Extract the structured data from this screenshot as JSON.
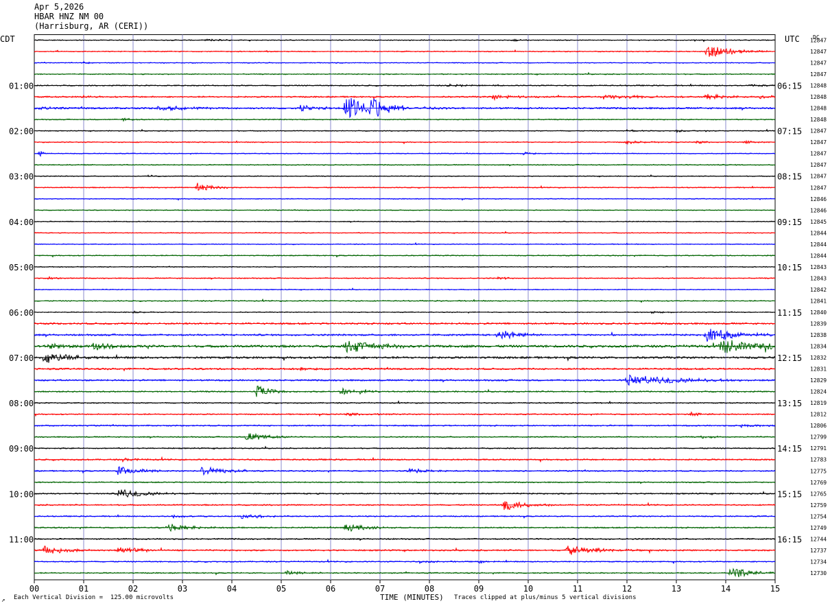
{
  "header": {
    "date": "Apr 5,2026",
    "station": "HBAR HNZ NM 00",
    "location": "(Harrisburg, AR (CERI))"
  },
  "chart_data": {
    "type": "line",
    "title": "HBAR HNZ NM 00",
    "left_axis_label": "CDT",
    "right_axis_label": "UTC",
    "dc_label": "DC",
    "xlabel": "TIME (MINUTES)",
    "x_ticks": [
      "00",
      "01",
      "02",
      "03",
      "04",
      "05",
      "06",
      "07",
      "08",
      "09",
      "10",
      "11",
      "12",
      "13",
      "14",
      "15"
    ],
    "xlim": [
      0,
      15
    ],
    "grid": true,
    "trace_colors": [
      "#000000",
      "#ff0000",
      "#0000ff",
      "#006400"
    ],
    "trace_minutes": 15,
    "left_times": [
      {
        "row": 4,
        "label": "01:00"
      },
      {
        "row": 8,
        "label": "02:00"
      },
      {
        "row": 12,
        "label": "03:00"
      },
      {
        "row": 16,
        "label": "04:00"
      },
      {
        "row": 20,
        "label": "05:00"
      },
      {
        "row": 24,
        "label": "06:00"
      },
      {
        "row": 28,
        "label": "07:00"
      },
      {
        "row": 32,
        "label": "08:00"
      },
      {
        "row": 36,
        "label": "09:00"
      },
      {
        "row": 40,
        "label": "10:00"
      },
      {
        "row": 44,
        "label": "11:00"
      }
    ],
    "right_times": [
      {
        "row": 4,
        "label": "06:15"
      },
      {
        "row": 8,
        "label": "07:15"
      },
      {
        "row": 12,
        "label": "08:15"
      },
      {
        "row": 16,
        "label": "09:15"
      },
      {
        "row": 20,
        "label": "10:15"
      },
      {
        "row": 24,
        "label": "11:15"
      },
      {
        "row": 28,
        "label": "12:15"
      },
      {
        "row": 32,
        "label": "13:15"
      },
      {
        "row": 36,
        "label": "14:15"
      },
      {
        "row": 40,
        "label": "15:15"
      },
      {
        "row": 44,
        "label": "16:15"
      }
    ],
    "dc_values": [
      "12847",
      "12847",
      "12847",
      "12847",
      "12848",
      "12848",
      "12848",
      "12848",
      "12847",
      "12847",
      "12847",
      "12847",
      "12847",
      "12847",
      "12846",
      "12846",
      "12845",
      "12844",
      "12844",
      "12844",
      "12843",
      "12843",
      "12842",
      "12841",
      "12840",
      "12839",
      "12838",
      "12834",
      "12832",
      "12831",
      "12829",
      "12824",
      "12819",
      "12812",
      "12806",
      "12799",
      "12791",
      "12783",
      "12775",
      "12769",
      "12765",
      "12759",
      "12754",
      "12749",
      "12744",
      "12737",
      "12734",
      "12730"
    ],
    "traces": [
      {
        "noise": 0.6,
        "events": [
          {
            "t": 3.5,
            "a": 2,
            "w": 0.3
          },
          {
            "t": 9.7,
            "a": 1.5,
            "w": 0.2
          }
        ]
      },
      {
        "noise": 0.7,
        "events": [
          {
            "t": 13.6,
            "a": 10,
            "w": 0.5
          }
        ]
      },
      {
        "noise": 0.6,
        "events": [
          {
            "t": 1.0,
            "a": 1.5,
            "w": 0.2
          }
        ]
      },
      {
        "noise": 0.7,
        "events": []
      },
      {
        "noise": 0.8,
        "events": [
          {
            "t": 8.4,
            "a": 2,
            "w": 0.3
          },
          {
            "t": 14.5,
            "a": 2,
            "w": 0.3
          }
        ]
      },
      {
        "noise": 1.0,
        "events": [
          {
            "t": 1.0,
            "a": 2,
            "w": 0.2
          },
          {
            "t": 9.3,
            "a": 4,
            "w": 0.4
          },
          {
            "t": 11.5,
            "a": 3,
            "w": 0.8
          },
          {
            "t": 13.6,
            "a": 4,
            "w": 0.4
          },
          {
            "t": 14.7,
            "a": 3,
            "w": 0.3
          }
        ]
      },
      {
        "noise": 1.2,
        "events": [
          {
            "t": 0.1,
            "a": 3,
            "w": 0.2
          },
          {
            "t": 2.5,
            "a": 4,
            "w": 0.6
          },
          {
            "t": 5.4,
            "a": 6,
            "w": 0.3
          },
          {
            "t": 6.3,
            "a": 20,
            "w": 0.4
          },
          {
            "t": 6.8,
            "a": 18,
            "w": 0.3
          },
          {
            "t": 7.2,
            "a": 8,
            "w": 0.2
          },
          {
            "t": 7.9,
            "a": 3,
            "w": 0.3
          }
        ]
      },
      {
        "noise": 0.7,
        "events": [
          {
            "t": 1.8,
            "a": 2,
            "w": 0.2
          }
        ]
      },
      {
        "noise": 0.6,
        "events": [
          {
            "t": 12.0,
            "a": 2,
            "w": 0.2
          },
          {
            "t": 13.0,
            "a": 2,
            "w": 0.2
          }
        ]
      },
      {
        "noise": 0.7,
        "events": [
          {
            "t": 12.0,
            "a": 3,
            "w": 0.3
          },
          {
            "t": 13.4,
            "a": 3,
            "w": 0.2
          },
          {
            "t": 14.4,
            "a": 2,
            "w": 0.2
          }
        ]
      },
      {
        "noise": 0.6,
        "events": [
          {
            "t": 0.1,
            "a": 5,
            "w": 0.1
          },
          {
            "t": 9.9,
            "a": 3,
            "w": 0.2
          }
        ]
      },
      {
        "noise": 0.7,
        "events": []
      },
      {
        "noise": 0.6,
        "events": [
          {
            "t": 2.3,
            "a": 2,
            "w": 0.2
          }
        ]
      },
      {
        "noise": 0.7,
        "events": [
          {
            "t": 3.3,
            "a": 7,
            "w": 0.3
          }
        ]
      },
      {
        "noise": 0.6,
        "events": []
      },
      {
        "noise": 0.6,
        "events": []
      },
      {
        "noise": 0.6,
        "events": []
      },
      {
        "noise": 0.6,
        "events": []
      },
      {
        "noise": 0.6,
        "events": []
      },
      {
        "noise": 0.7,
        "events": []
      },
      {
        "noise": 0.6,
        "events": []
      },
      {
        "noise": 0.7,
        "events": [
          {
            "t": 0.3,
            "a": 2,
            "w": 0.2
          },
          {
            "t": 9.4,
            "a": 2,
            "w": 0.2
          }
        ]
      },
      {
        "noise": 0.6,
        "events": []
      },
      {
        "noise": 0.7,
        "events": []
      },
      {
        "noise": 0.6,
        "events": [
          {
            "t": 2.0,
            "a": 2,
            "w": 0.2
          },
          {
            "t": 12.5,
            "a": 2,
            "w": 0.2
          }
        ]
      },
      {
        "noise": 1.2,
        "events": []
      },
      {
        "noise": 1.2,
        "events": [
          {
            "t": 9.4,
            "a": 8,
            "w": 0.4
          },
          {
            "t": 13.6,
            "a": 10,
            "w": 0.6
          }
        ]
      },
      {
        "noise": 1.6,
        "events": [
          {
            "t": 0.3,
            "a": 5,
            "w": 0.3
          },
          {
            "t": 1.2,
            "a": 6,
            "w": 0.3
          },
          {
            "t": 6.3,
            "a": 10,
            "w": 0.6
          },
          {
            "t": 13.9,
            "a": 10,
            "w": 0.7
          },
          {
            "t": 14.8,
            "a": 6,
            "w": 0.3
          }
        ]
      },
      {
        "noise": 1.4,
        "events": [
          {
            "t": 0.2,
            "a": 8,
            "w": 0.5
          }
        ]
      },
      {
        "noise": 1.2,
        "events": [
          {
            "t": 5.4,
            "a": 3,
            "w": 0.2
          }
        ]
      },
      {
        "noise": 1.1,
        "events": [
          {
            "t": 12.0,
            "a": 8,
            "w": 1.0
          }
        ]
      },
      {
        "noise": 0.9,
        "events": [
          {
            "t": 4.5,
            "a": 9,
            "w": 0.3
          },
          {
            "t": 6.2,
            "a": 6,
            "w": 0.2
          },
          {
            "t": 6.6,
            "a": 4,
            "w": 0.2
          }
        ]
      },
      {
        "noise": 0.8,
        "events": []
      },
      {
        "noise": 0.8,
        "events": [
          {
            "t": 6.3,
            "a": 3,
            "w": 0.4
          },
          {
            "t": 13.3,
            "a": 3,
            "w": 0.2
          }
        ]
      },
      {
        "noise": 0.9,
        "events": [
          {
            "t": 14.3,
            "a": 4,
            "w": 0.3
          }
        ]
      },
      {
        "noise": 0.8,
        "events": [
          {
            "t": 4.3,
            "a": 6,
            "w": 0.4
          },
          {
            "t": 13.5,
            "a": 3,
            "w": 0.2
          }
        ]
      },
      {
        "noise": 0.8,
        "events": []
      },
      {
        "noise": 1.0,
        "events": [
          {
            "t": 1.8,
            "a": 3,
            "w": 0.2
          }
        ]
      },
      {
        "noise": 0.9,
        "events": [
          {
            "t": 1.7,
            "a": 7,
            "w": 0.4
          },
          {
            "t": 3.4,
            "a": 7,
            "w": 0.4
          },
          {
            "t": 7.6,
            "a": 4,
            "w": 0.3
          }
        ]
      },
      {
        "noise": 0.8,
        "events": []
      },
      {
        "noise": 0.9,
        "events": [
          {
            "t": 1.7,
            "a": 7,
            "w": 0.5
          }
        ]
      },
      {
        "noise": 0.9,
        "events": [
          {
            "t": 9.5,
            "a": 9,
            "w": 0.4
          }
        ]
      },
      {
        "noise": 0.8,
        "events": [
          {
            "t": 2.8,
            "a": 2,
            "w": 0.3
          },
          {
            "t": 4.2,
            "a": 4,
            "w": 0.4
          }
        ]
      },
      {
        "noise": 0.9,
        "events": [
          {
            "t": 2.7,
            "a": 6,
            "w": 0.4
          },
          {
            "t": 6.3,
            "a": 7,
            "w": 0.4
          }
        ]
      },
      {
        "noise": 0.9,
        "events": []
      },
      {
        "noise": 1.0,
        "events": [
          {
            "t": 0.2,
            "a": 7,
            "w": 0.4
          },
          {
            "t": 1.7,
            "a": 5,
            "w": 0.5
          },
          {
            "t": 10.8,
            "a": 7,
            "w": 0.6
          }
        ]
      },
      {
        "noise": 0.8,
        "events": [
          {
            "t": 7.8,
            "a": 2,
            "w": 0.3
          },
          {
            "t": 9.0,
            "a": 2,
            "w": 0.2
          }
        ]
      },
      {
        "noise": 0.8,
        "events": [
          {
            "t": 5.1,
            "a": 3,
            "w": 0.3
          },
          {
            "t": 14.1,
            "a": 8,
            "w": 0.4
          }
        ]
      }
    ]
  },
  "footer": {
    "vertical_division": "Each Vertical Division =  125.00 microvolts",
    "clip_note": "Traces clipped at plus/minus 5 vertical divisions",
    "corner_mark": "↗"
  }
}
